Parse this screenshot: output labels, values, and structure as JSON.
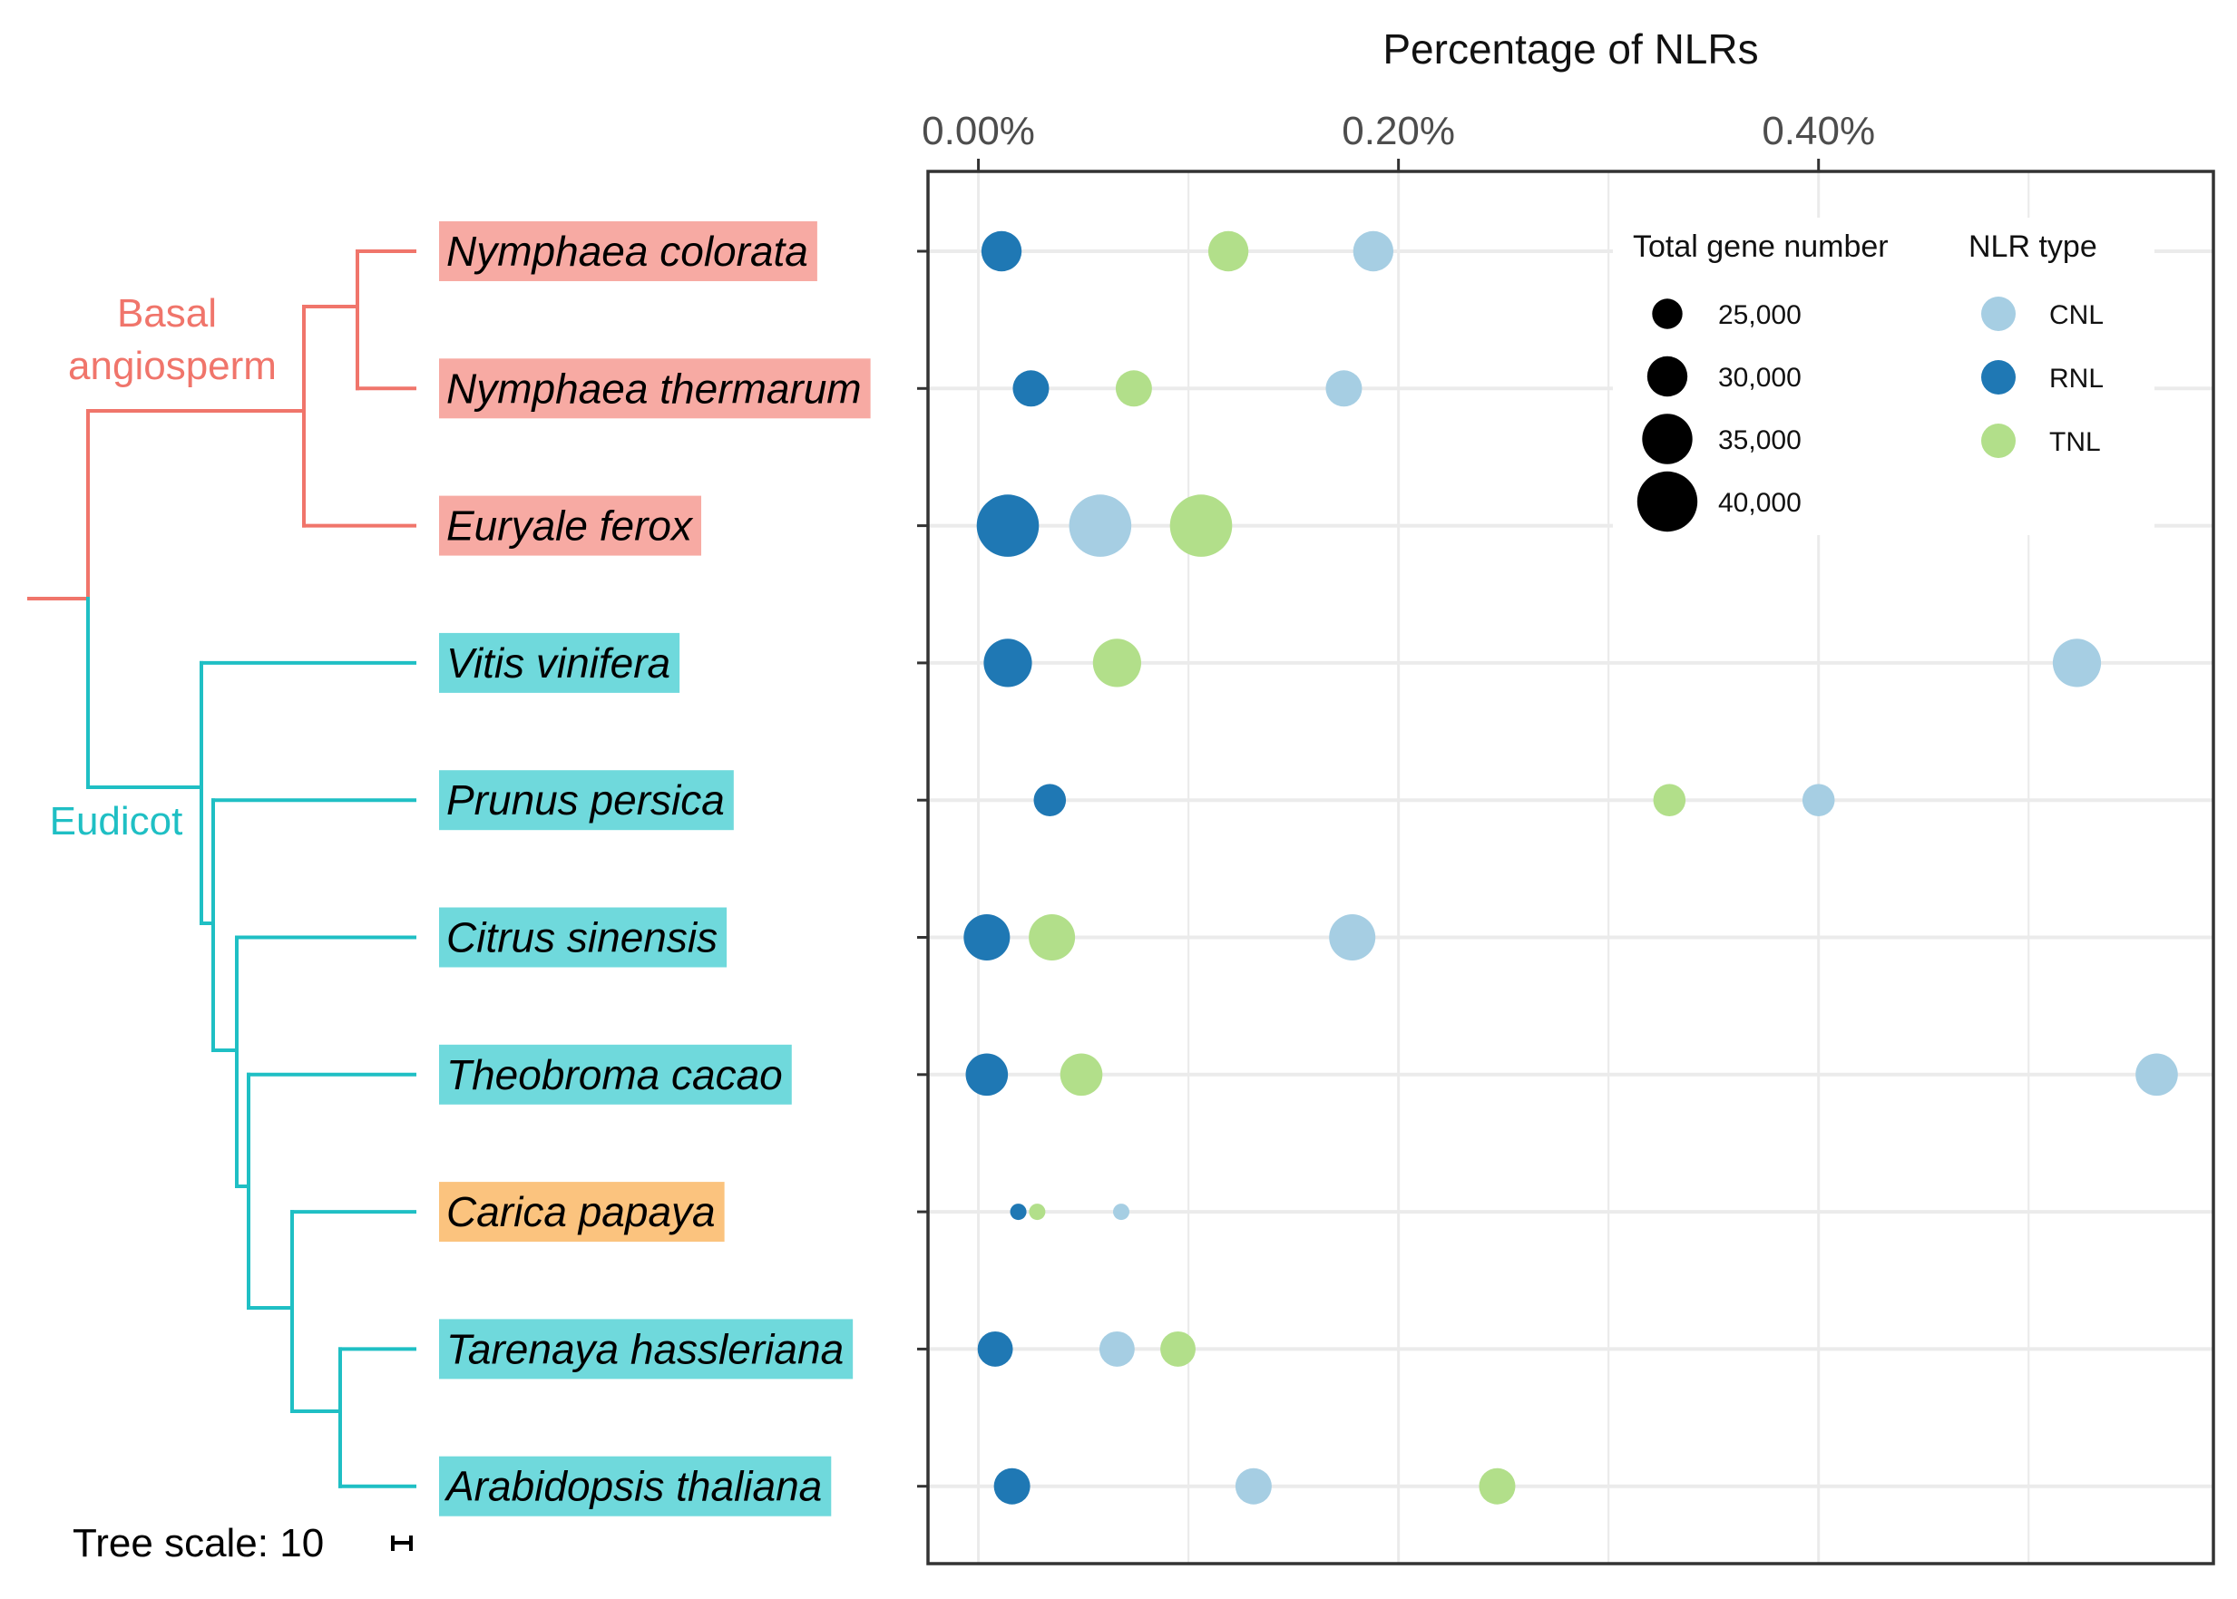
{
  "chart_data": {
    "type": "scatter",
    "title": "",
    "xlabel": "Percentage of NLRs",
    "x_tick_values": [
      0.0,
      0.2,
      0.4
    ],
    "x_tick_labels": [
      "0.00%",
      "0.20%",
      "0.40%"
    ],
    "xlim": [
      -0.024,
      0.588
    ],
    "grid": true,
    "categories": [
      "Nymphaea colorata",
      "Nymphaea thermarum",
      "Euryale ferox",
      "Vitis vinifera",
      "Prunus persica",
      "Citrus sinensis",
      "Theobroma cacao",
      "Carica papaya",
      "Tarenaya hassleriana",
      "Arabidopsis thaliana"
    ],
    "total_gene_number": [
      30000,
      28000,
      41000,
      34000,
      26000,
      33000,
      31000,
      18000,
      27500,
      28000
    ],
    "series": [
      {
        "name": "CNL",
        "color": "#a6cee3",
        "values": [
          0.188,
          0.174,
          0.058,
          0.523,
          0.4,
          0.178,
          0.561,
          0.068,
          0.066,
          0.131
        ]
      },
      {
        "name": "RNL",
        "color": "#1f78b4",
        "values": [
          0.011,
          0.025,
          0.014,
          0.014,
          0.034,
          0.004,
          0.004,
          0.019,
          0.008,
          0.016
        ]
      },
      {
        "name": "TNL",
        "color": "#b2df8a",
        "values": [
          0.119,
          0.074,
          0.106,
          0.066,
          0.329,
          0.035,
          0.049,
          0.028,
          0.095,
          0.247
        ]
      }
    ],
    "species_highlight": [
      "#f7aaa3",
      "#f7aaa3",
      "#f7aaa3",
      "#6fd9dc",
      "#6fd9dc",
      "#6fd9dc",
      "#6fd9dc",
      "#fbc37e",
      "#6fd9dc",
      "#6fd9dc"
    ],
    "legend": {
      "size_title": "Total gene number",
      "size_values": [
        25000,
        30000,
        35000,
        40000
      ],
      "size_labels": [
        "25,000",
        "30,000",
        "35,000",
        "40,000"
      ],
      "color_title": "NLR type",
      "color_labels": [
        "CNL",
        "RNL",
        "TNL"
      ],
      "placement": "top-right, inside panel"
    },
    "tree": {
      "clades": [
        {
          "name": "Basal angiosperm",
          "lines": [
            "Basal",
            "angiosperm"
          ],
          "color": "#f0756b"
        },
        {
          "name": "Eudicot",
          "lines": [
            "Eudicot"
          ],
          "color": "#1fbfc4"
        }
      ],
      "scale_text": "Tree scale: 10"
    }
  }
}
